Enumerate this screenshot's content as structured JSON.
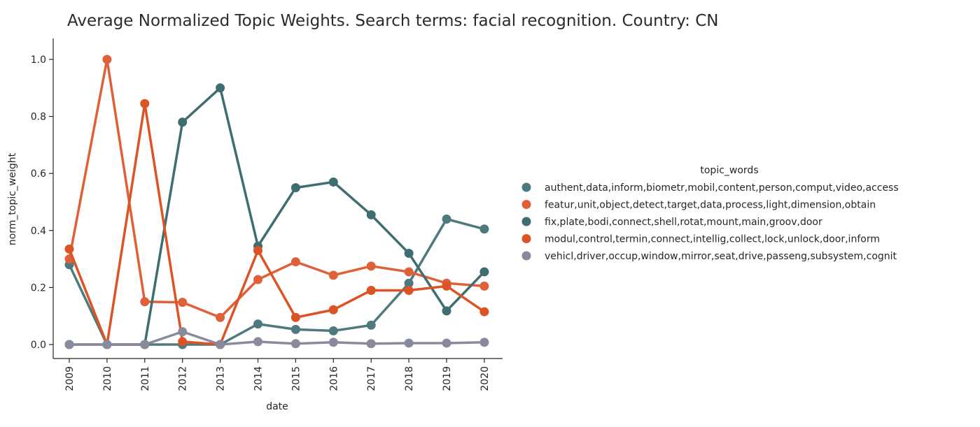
{
  "chart_data": {
    "type": "line",
    "title": "Average Normalized Topic Weights. Search terms: facial recognition. Country: CN",
    "xlabel": "date",
    "ylabel": "norm_topic_weight",
    "x": [
      "2009",
      "2010",
      "2011",
      "2012",
      "2013",
      "2014",
      "2015",
      "2016",
      "2017",
      "2018",
      "2019",
      "2020"
    ],
    "ylim": [
      0,
      1.05
    ],
    "yticks": [
      "0.0",
      "0.2",
      "0.4",
      "0.6",
      "0.8",
      "1.0"
    ],
    "grid": false,
    "legend": {
      "title": "topic_words",
      "placement": "right"
    },
    "series": [
      {
        "name": "authent,data,inform,biometr,mobil,content,person,comput,video,access",
        "color": "#4e7a7d",
        "values": [
          0.28,
          0.0,
          0.0,
          0.0,
          0.0,
          0.072,
          0.053,
          0.048,
          0.068,
          0.215,
          0.44,
          0.405
        ]
      },
      {
        "name": "featur,unit,object,detect,target,data,process,light,dimension,obtain",
        "color": "#e0603a",
        "values": [
          0.3,
          1.0,
          0.15,
          0.148,
          0.095,
          0.228,
          0.29,
          0.243,
          0.275,
          0.255,
          0.215,
          0.205
        ]
      },
      {
        "name": "fix,plate,bodi,connect,shell,rotat,mount,main,groov,door",
        "color": "#3e6e70",
        "values": [
          0.0,
          0.0,
          0.0,
          0.78,
          0.9,
          0.345,
          0.55,
          0.57,
          0.455,
          0.32,
          0.118,
          0.255
        ]
      },
      {
        "name": "modul,control,termin,connect,intellig,collect,lock,unlock,door,inform",
        "color": "#dc5426",
        "values": [
          0.335,
          0.0,
          0.845,
          0.01,
          0.0,
          0.33,
          0.095,
          0.122,
          0.19,
          0.19,
          0.205,
          0.115
        ]
      },
      {
        "name": "vehicl,driver,occup,window,mirror,seat,drive,passeng,subsystem,cognit",
        "color": "#8a8a9e",
        "values": [
          0.0,
          0.0,
          0.0,
          0.045,
          0.0,
          0.01,
          0.003,
          0.008,
          0.003,
          0.005,
          0.005,
          0.008
        ]
      }
    ]
  }
}
